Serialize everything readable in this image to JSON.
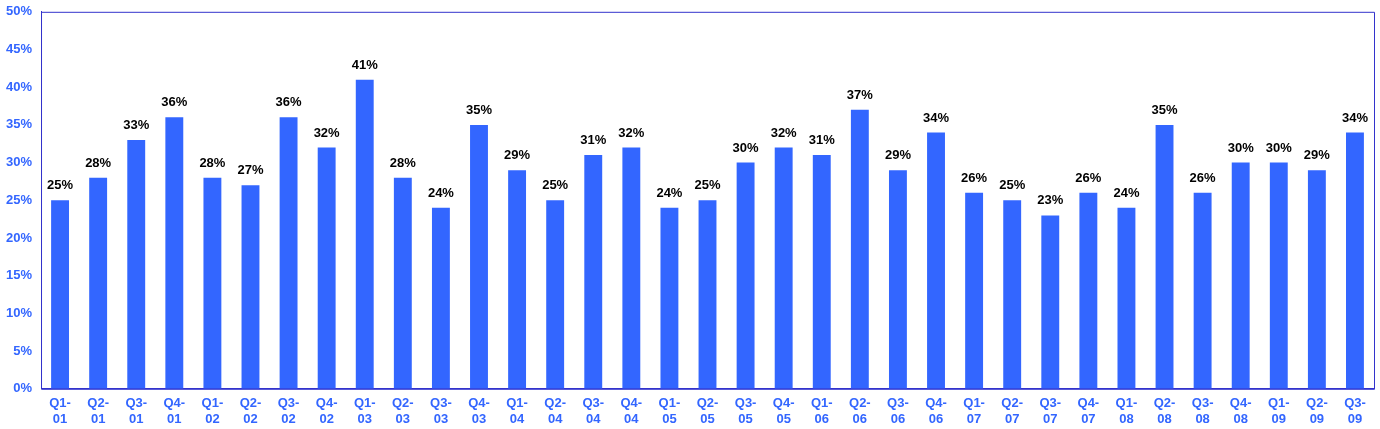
{
  "chart_data": {
    "type": "bar",
    "categories": [
      "Q1-01",
      "Q2-01",
      "Q3-01",
      "Q4-01",
      "Q1-02",
      "Q2-02",
      "Q3-02",
      "Q4-02",
      "Q1-03",
      "Q2-03",
      "Q3-03",
      "Q4-03",
      "Q1-04",
      "Q2-04",
      "Q3-04",
      "Q4-04",
      "Q1-05",
      "Q2-05",
      "Q3-05",
      "Q4-05",
      "Q1-06",
      "Q2-06",
      "Q3-06",
      "Q4-06",
      "Q1-07",
      "Q2-07",
      "Q3-07",
      "Q4-07",
      "Q1-08",
      "Q2-08",
      "Q3-08",
      "Q4-08",
      "Q1-09",
      "Q2-09",
      "Q3-09"
    ],
    "values": [
      25,
      28,
      33,
      36,
      28,
      27,
      36,
      32,
      41,
      28,
      24,
      35,
      29,
      25,
      31,
      32,
      24,
      25,
      30,
      32,
      31,
      37,
      29,
      34,
      26,
      25,
      23,
      26,
      24,
      35,
      26,
      30,
      30,
      29,
      34
    ],
    "value_labels": [
      "25%",
      "28%",
      "33%",
      "36%",
      "28%",
      "27%",
      "36%",
      "32%",
      "41%",
      "28%",
      "24%",
      "35%",
      "29%",
      "25%",
      "31%",
      "32%",
      "24%",
      "25%",
      "30%",
      "32%",
      "31%",
      "37%",
      "29%",
      "34%",
      "26%",
      "25%",
      "23%",
      "26%",
      "24%",
      "35%",
      "26%",
      "30%",
      "30%",
      "29%",
      "34%"
    ],
    "color": "#3366ff",
    "ylim": [
      0,
      50
    ],
    "yticks": [
      {
        "value": 0,
        "label": "0%"
      },
      {
        "value": 5,
        "label": "5%"
      },
      {
        "value": 10,
        "label": "10%"
      },
      {
        "value": 15,
        "label": "15%"
      },
      {
        "value": 20,
        "label": "20%"
      },
      {
        "value": 25,
        "label": "25%"
      },
      {
        "value": 30,
        "label": "30%"
      },
      {
        "value": 35,
        "label": "35%"
      },
      {
        "value": 40,
        "label": "40%"
      },
      {
        "value": 45,
        "label": "45%"
      },
      {
        "value": 50,
        "label": "50%"
      }
    ],
    "grid": false,
    "legend": false
  }
}
